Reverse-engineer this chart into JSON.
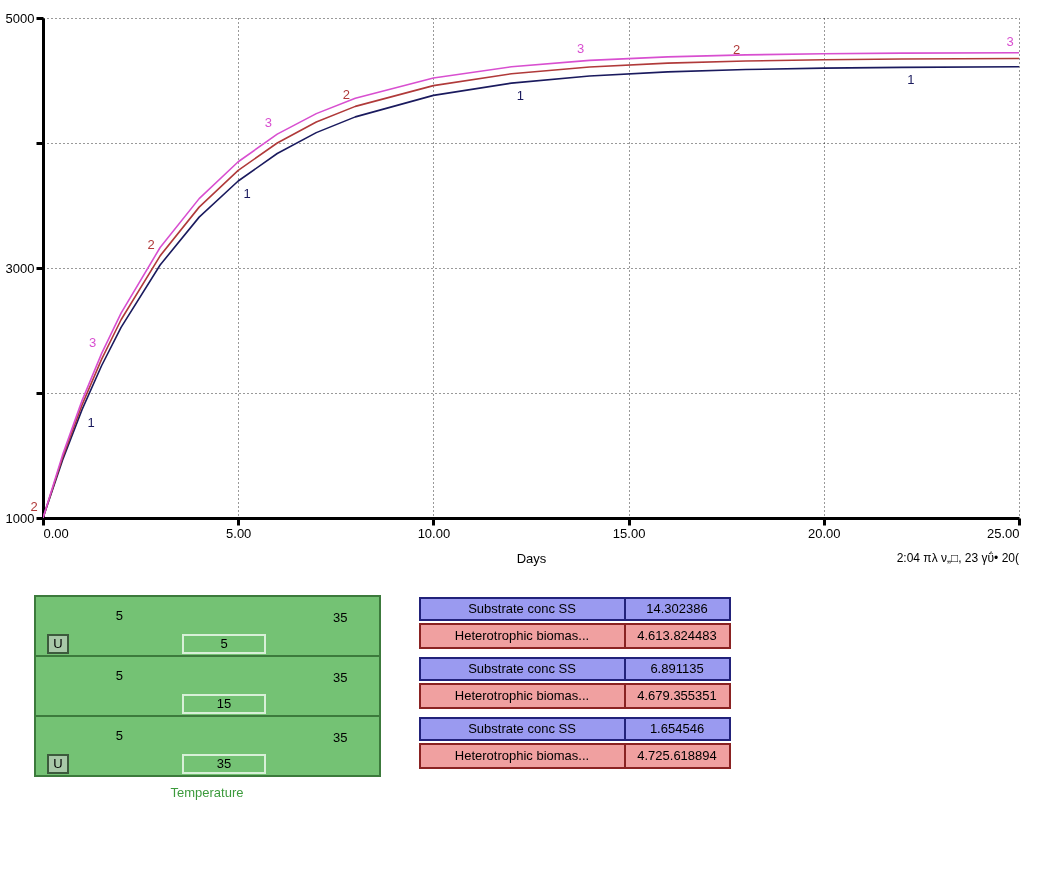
{
  "chart_data": [
    {
      "type": "line",
      "xlabel": "Days",
      "x": [
        0,
        0.5,
        1,
        1.5,
        2,
        3,
        4,
        5,
        6,
        7,
        8,
        10,
        12,
        14,
        16,
        18,
        20,
        22,
        25
      ],
      "series": [
        {
          "name": "1",
          "color": "#1a1a5e",
          "values": [
            1000,
            1463,
            1867,
            2218,
            2525,
            3024,
            3407,
            3696,
            3916,
            4083,
            4209,
            4381,
            4479,
            4536,
            4569,
            4588,
            4599,
            4605,
            4610
          ]
        },
        {
          "name": "2",
          "color": "#b03a3a",
          "values": [
            1000,
            1482,
            1905,
            2269,
            2586,
            3097,
            3487,
            3781,
            4000,
            4168,
            4293,
            4459,
            4554,
            4608,
            4639,
            4656,
            4666,
            4672,
            4676
          ]
        },
        {
          "name": "3",
          "color": "#d84fd0",
          "values": [
            1000,
            1503,
            1939,
            2315,
            2639,
            3164,
            3555,
            3850,
            4071,
            4235,
            4358,
            4520,
            4610,
            4661,
            4689,
            4705,
            4714,
            4719,
            4722
          ]
        }
      ],
      "xlim": [
        0,
        25
      ],
      "ylim": [
        1000,
        5000
      ],
      "xticks": [
        {
          "value": 0,
          "label": "0.00"
        },
        {
          "value": 5,
          "label": "5.00"
        },
        {
          "value": 10,
          "label": "10.00"
        },
        {
          "value": 15,
          "label": "15.00"
        },
        {
          "value": 20,
          "label": "20.00"
        },
        {
          "value": 25,
          "label": "25.00"
        }
      ],
      "yticks": [
        1000,
        {
          "value": 2000,
          "label": null
        },
        3000,
        {
          "value": 4000,
          "label": null
        },
        5000
      ],
      "grid": true,
      "line_style": "solid",
      "marker": "none",
      "annotations": [
        "2:04 πλ   ν„□, 23 γΰ• 20("
      ]
    },
    {
      "type": "other",
      "annotations": [
        "5",
        "35",
        "U",
        "5",
        "Substrate conc SS",
        "14.302386",
        "Heterotrophic biomas...",
        "4.613.824483",
        "5",
        "35",
        "15",
        "Substrate conc SS",
        "6.891135",
        "Heterotrophic biomas...",
        "4.679.355351",
        "5",
        "35",
        "U",
        "35",
        "Substrate conc SS",
        "1.654546",
        "Heterotrophic biomas...",
        "4.725.618894",
        "Temperature"
      ]
    }
  ]
}
